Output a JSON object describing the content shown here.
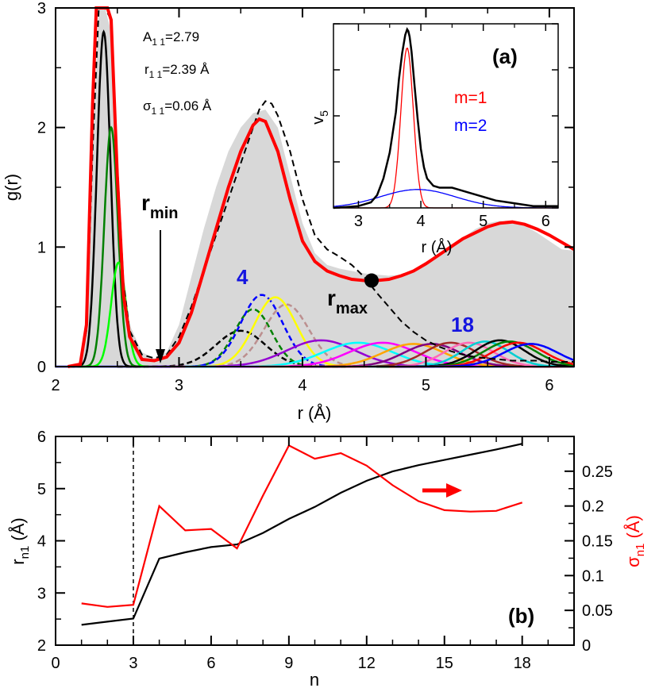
{
  "chart_data": [
    {
      "id": "a",
      "type": "line",
      "panel_label": "(a)",
      "xlabel": "r (Å)",
      "ylabel": "g(r)",
      "xlim": [
        2,
        6.2
      ],
      "ylim": [
        0,
        3
      ],
      "xticks": [
        "2",
        "3",
        "4",
        "5",
        "6"
      ],
      "yticks": [
        "0",
        "1",
        "2",
        "3"
      ],
      "annotations": {
        "A": "A",
        "A_sub": "1 1",
        "A_val": "=2.79",
        "r": "r",
        "r_sub": "1 1",
        "r_val": "=2.39 Å",
        "s": "σ",
        "s_sub": "1 1",
        "s_val": "=0.06 Å",
        "rmin": "r",
        "rmin_sub": "min",
        "rmax": "r",
        "rmax_sub": "max",
        "first_shell_label": "4",
        "last_shell_label": "18"
      },
      "markers": {
        "rmin_x": 2.82,
        "rmax_x": 4.56,
        "rmax_y": 0.72
      },
      "series": [
        {
          "name": "g(r) total (grey fill)",
          "color": "#d8d8d8",
          "x": [
            2.1,
            2.2,
            2.25,
            2.3,
            2.35,
            2.4,
            2.45,
            2.5,
            2.55,
            2.6,
            2.7,
            2.8,
            2.9,
            3.0,
            3.1,
            3.2,
            3.3,
            3.4,
            3.5,
            3.6,
            3.7,
            3.8,
            3.9,
            4.0,
            4.1,
            4.2,
            4.3,
            4.4,
            4.5,
            4.6,
            4.7,
            4.8,
            4.9,
            5.0,
            5.1,
            5.2,
            5.3,
            5.4,
            5.5,
            5.6,
            5.7,
            5.8,
            5.9,
            6.0,
            6.1,
            6.2
          ],
          "y": [
            0,
            0.02,
            0.3,
            1.8,
            3.0,
            3.2,
            2.8,
            1.8,
            0.8,
            0.35,
            0.12,
            0.07,
            0.12,
            0.35,
            0.75,
            1.15,
            1.5,
            1.8,
            2.0,
            2.12,
            2.15,
            2.0,
            1.6,
            1.2,
            0.95,
            0.85,
            0.82,
            0.8,
            0.78,
            0.77,
            0.76,
            0.77,
            0.8,
            0.85,
            0.92,
            1.0,
            1.08,
            1.15,
            1.2,
            1.22,
            1.21,
            1.18,
            1.12,
            1.05,
            0.98,
            0.97
          ]
        },
        {
          "name": "model g(r)",
          "color": "#ff0000",
          "width": 4,
          "x": [
            2.1,
            2.2,
            2.25,
            2.3,
            2.33,
            2.35,
            2.38,
            2.42,
            2.45,
            2.5,
            2.55,
            2.6,
            2.7,
            2.8,
            2.9,
            3.0,
            3.1,
            3.2,
            3.3,
            3.4,
            3.5,
            3.6,
            3.65,
            3.7,
            3.8,
            3.9,
            4.0,
            4.1,
            4.2,
            4.3,
            4.4,
            4.5,
            4.6,
            4.7,
            4.8,
            4.9,
            5.0,
            5.1,
            5.2,
            5.3,
            5.4,
            5.5,
            5.6,
            5.7,
            5.8,
            5.9,
            6.0,
            6.1,
            6.2
          ],
          "y": [
            0,
            0.02,
            0.35,
            2.2,
            3.0,
            3.2,
            3.2,
            3.2,
            2.9,
            1.6,
            0.6,
            0.25,
            0.06,
            0.05,
            0.08,
            0.2,
            0.45,
            0.8,
            1.15,
            1.5,
            1.8,
            2.02,
            2.07,
            2.05,
            1.8,
            1.4,
            1.05,
            0.88,
            0.8,
            0.76,
            0.73,
            0.72,
            0.72,
            0.73,
            0.76,
            0.8,
            0.86,
            0.93,
            1.0,
            1.07,
            1.12,
            1.17,
            1.2,
            1.21,
            1.19,
            1.15,
            1.1,
            1.04,
            0.98
          ]
        },
        {
          "name": "model (dashed)",
          "color": "#000000",
          "dashed": true,
          "x": [
            2.1,
            2.2,
            2.25,
            2.3,
            2.35,
            2.4,
            2.45,
            2.5,
            2.55,
            2.6,
            2.7,
            2.8,
            2.9,
            3.0,
            3.1,
            3.2,
            3.3,
            3.4,
            3.5,
            3.6,
            3.65,
            3.7,
            3.75,
            3.8,
            3.9,
            4.0,
            4.1,
            4.2,
            4.3,
            4.4,
            4.5,
            4.6,
            4.7,
            4.8,
            4.9,
            5.0,
            5.1,
            5.2,
            5.3,
            5.4,
            5.5,
            5.6,
            5.7,
            5.8,
            5.9,
            6.0,
            6.1,
            6.2
          ],
          "y": [
            0,
            0.02,
            0.3,
            1.8,
            3.0,
            3.2,
            2.9,
            1.7,
            0.7,
            0.3,
            0.1,
            0.07,
            0.1,
            0.25,
            0.5,
            0.8,
            1.1,
            1.4,
            1.7,
            2.0,
            2.15,
            2.22,
            2.2,
            2.1,
            1.8,
            1.4,
            1.1,
            0.98,
            0.92,
            0.85,
            0.75,
            0.62,
            0.5,
            0.38,
            0.29,
            0.22,
            0.17,
            0.13,
            0.1,
            0.08,
            0.07,
            0.06,
            0.05,
            0.05,
            0.05,
            0.04,
            0.04,
            0.04
          ]
        },
        {
          "name": "n=1",
          "color": "#000000",
          "mu": 2.39,
          "sigma": 0.055,
          "amp": 2.8
        },
        {
          "name": "n=2",
          "color": "#008000",
          "mu": 2.45,
          "sigma": 0.055,
          "amp": 2.0
        },
        {
          "name": "n=3",
          "color": "#00ff00",
          "mu": 2.51,
          "sigma": 0.06,
          "amp": 0.87
        },
        {
          "name": "n=4",
          "color": "#000000",
          "mu": 3.5,
          "sigma": 0.2,
          "amp": 0.3,
          "dashed": true
        },
        {
          "name": "n=5",
          "color": "#008000",
          "mu": 3.6,
          "sigma": 0.15,
          "amp": 0.48,
          "dashed": true
        },
        {
          "name": "n=6",
          "color": "#0000ff",
          "mu": 3.67,
          "sigma": 0.17,
          "amp": 0.6,
          "dashed": true
        },
        {
          "name": "n=7",
          "color": "#ffff00",
          "mu": 3.78,
          "sigma": 0.17,
          "amp": 0.58
        },
        {
          "name": "n=8",
          "color": "#bc8f8f",
          "mu": 3.87,
          "sigma": 0.18,
          "amp": 0.52,
          "dashed": true
        },
        {
          "name": "n=9",
          "color": "#9400d3",
          "mu": 4.15,
          "sigma": 0.28,
          "amp": 0.22
        },
        {
          "name": "n=10",
          "color": "#00ffff",
          "mu": 4.45,
          "sigma": 0.28,
          "amp": 0.2
        },
        {
          "name": "n=11",
          "color": "#ff00ff",
          "mu": 4.65,
          "sigma": 0.27,
          "amp": 0.2
        },
        {
          "name": "n=12",
          "color": "#ffa500",
          "mu": 4.9,
          "sigma": 0.25,
          "amp": 0.19
        },
        {
          "name": "n=13",
          "color": "#800080",
          "mu": 5.05,
          "sigma": 0.23,
          "amp": 0.19
        },
        {
          "name": "n=14",
          "color": "#a52a2a",
          "mu": 5.2,
          "sigma": 0.21,
          "amp": 0.2
        },
        {
          "name": "n=15",
          "color": "#ff69b4",
          "mu": 5.35,
          "sigma": 0.2,
          "amp": 0.2
        },
        {
          "name": "n=16",
          "color": "#00ced1",
          "mu": 5.48,
          "sigma": 0.19,
          "amp": 0.21
        },
        {
          "name": "n=17",
          "color": "#000000",
          "mu": 5.6,
          "sigma": 0.2,
          "amp": 0.22
        },
        {
          "name": "n=18",
          "color": "#008000",
          "mu": 5.68,
          "sigma": 0.21,
          "amp": 0.21
        },
        {
          "name": "n=19",
          "color": "#ff0000",
          "mu": 5.75,
          "sigma": 0.21,
          "amp": 0.2
        },
        {
          "name": "n=20",
          "color": "#0000ff",
          "mu": 5.85,
          "sigma": 0.22,
          "amp": 0.19
        }
      ]
    },
    {
      "id": "a-inset",
      "type": "line",
      "xlabel": "r (Å)",
      "ylabel": "v",
      "ylabel_sub": "5",
      "xlim": [
        2.6,
        6.2
      ],
      "ylim": [
        0,
        1
      ],
      "xticks": [
        "3",
        "4",
        "5",
        "6"
      ],
      "legend": [
        {
          "label": "m=1",
          "color": "#ff0000"
        },
        {
          "label": "m=2",
          "color": "#0000ff"
        }
      ],
      "series": [
        {
          "name": "v5 total",
          "color": "#000000",
          "x": [
            2.6,
            3.0,
            3.2,
            3.3,
            3.4,
            3.5,
            3.6,
            3.65,
            3.7,
            3.75,
            3.78,
            3.8,
            3.82,
            3.85,
            3.9,
            3.95,
            4.0,
            4.05,
            4.1,
            4.2,
            4.3,
            4.4,
            4.5,
            4.6,
            4.8,
            5.0,
            5.2,
            5.4,
            5.6,
            5.8,
            6.0,
            6.2
          ],
          "y": [
            0,
            0.01,
            0.03,
            0.07,
            0.16,
            0.3,
            0.52,
            0.7,
            0.84,
            0.94,
            0.97,
            0.96,
            0.93,
            0.85,
            0.66,
            0.48,
            0.32,
            0.22,
            0.16,
            0.12,
            0.11,
            0.11,
            0.11,
            0.1,
            0.08,
            0.06,
            0.04,
            0.03,
            0.02,
            0.01,
            0.01,
            0.01
          ]
        },
        {
          "name": "m=1",
          "color": "#ff0000",
          "mu": 3.78,
          "sigma": 0.1,
          "amp": 0.87
        },
        {
          "name": "m=2",
          "color": "#0000ff",
          "mu": 3.95,
          "sigma": 0.6,
          "amp": 0.1
        }
      ]
    },
    {
      "id": "b",
      "type": "line",
      "panel_label": "(b)",
      "xlabel": "n",
      "ylabel": "r",
      "ylabel_sub": "n1",
      "ylabel_unit": " (Å)",
      "y2label": "σ",
      "y2label_sub": "n1",
      "y2label_unit": " (Å)",
      "xlim": [
        0,
        20
      ],
      "ylim": [
        2,
        6
      ],
      "y2lim": [
        0,
        0.3
      ],
      "xticks": [
        "0",
        "3",
        "6",
        "9",
        "12",
        "15",
        "18"
      ],
      "yticks": [
        "2",
        "3",
        "4",
        "5",
        "6"
      ],
      "y2ticks": [
        "0",
        "0.05",
        "0.1",
        "0.15",
        "0.2",
        "0.25"
      ],
      "vline_x": 3,
      "series": [
        {
          "name": "r_n1",
          "color": "#000000",
          "axis": "left",
          "x": [
            1,
            2,
            3,
            4,
            5,
            6,
            7,
            8,
            9,
            10,
            11,
            12,
            13,
            14,
            15,
            16,
            17,
            18
          ],
          "y": [
            2.39,
            2.45,
            2.51,
            3.66,
            3.78,
            3.88,
            3.93,
            4.15,
            4.42,
            4.65,
            4.92,
            5.15,
            5.33,
            5.45,
            5.55,
            5.65,
            5.75,
            5.86
          ]
        },
        {
          "name": "sigma_n1",
          "color": "#ff0000",
          "axis": "right",
          "x": [
            1,
            2,
            3,
            4,
            5,
            6,
            7,
            8,
            9,
            10,
            11,
            12,
            13,
            14,
            15,
            16,
            17,
            18
          ],
          "y": [
            0.06,
            0.055,
            0.058,
            0.2,
            0.165,
            0.167,
            0.139,
            0.215,
            0.287,
            0.268,
            0.276,
            0.258,
            0.23,
            0.207,
            0.194,
            0.192,
            0.193,
            0.205
          ]
        }
      ]
    }
  ]
}
